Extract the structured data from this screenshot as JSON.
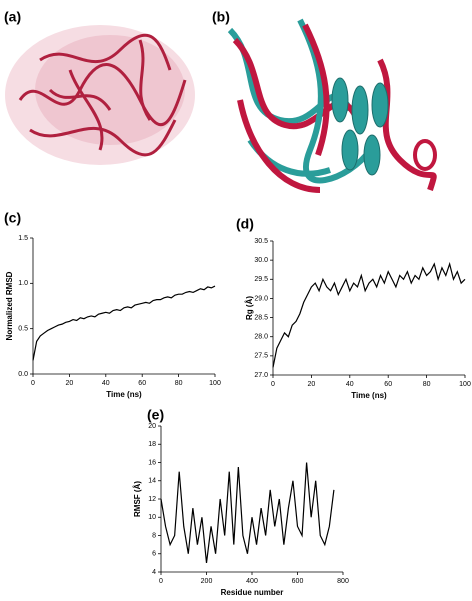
{
  "panel_labels": [
    "(a)",
    "(b)",
    "(c)",
    "(d)",
    "(e)"
  ],
  "chart_data": [
    {
      "type": "line",
      "xlabel": "Time (ns)",
      "ylabel": "Normalized RMSD",
      "color": "#000000",
      "x": [
        0,
        2,
        4,
        6,
        8,
        10,
        12,
        14,
        16,
        18,
        20,
        22,
        24,
        26,
        28,
        30,
        32,
        34,
        36,
        38,
        40,
        42,
        44,
        46,
        48,
        50,
        52,
        54,
        56,
        58,
        60,
        62,
        64,
        66,
        68,
        70,
        72,
        74,
        76,
        78,
        80,
        82,
        84,
        86,
        88,
        90,
        92,
        94,
        96,
        98,
        100
      ],
      "values": [
        0.15,
        0.36,
        0.42,
        0.45,
        0.48,
        0.5,
        0.52,
        0.54,
        0.55,
        0.57,
        0.58,
        0.6,
        0.59,
        0.62,
        0.61,
        0.63,
        0.64,
        0.63,
        0.66,
        0.67,
        0.68,
        0.67,
        0.7,
        0.71,
        0.7,
        0.73,
        0.74,
        0.73,
        0.76,
        0.77,
        0.78,
        0.79,
        0.78,
        0.81,
        0.82,
        0.82,
        0.84,
        0.85,
        0.84,
        0.87,
        0.88,
        0.88,
        0.9,
        0.91,
        0.9,
        0.92,
        0.94,
        0.93,
        0.96,
        0.95,
        0.97
      ],
      "xlim": [
        0,
        100
      ],
      "xticks": [
        0,
        20,
        40,
        60,
        80,
        100
      ],
      "ylim": [
        0,
        1.5
      ],
      "yticks": [
        {
          "value": 0,
          "label": "0.0"
        },
        {
          "value": 0.5,
          "label": "0.5"
        },
        {
          "value": 1,
          "label": "1.0"
        },
        {
          "value": 1.5,
          "label": "1.5"
        }
      ]
    },
    {
      "type": "line",
      "xlabel": "Time (ns)",
      "ylabel": "Rg (Å)",
      "color": "#000000",
      "x": [
        0,
        2,
        4,
        6,
        8,
        10,
        12,
        14,
        16,
        18,
        20,
        22,
        24,
        26,
        28,
        30,
        32,
        34,
        36,
        38,
        40,
        42,
        44,
        46,
        48,
        50,
        52,
        54,
        56,
        58,
        60,
        62,
        64,
        66,
        68,
        70,
        72,
        74,
        76,
        78,
        80,
        82,
        84,
        86,
        88,
        90,
        92,
        94,
        96,
        98,
        100
      ],
      "values": [
        27.2,
        27.7,
        27.9,
        28.1,
        28.0,
        28.3,
        28.4,
        28.6,
        28.9,
        29.1,
        29.3,
        29.4,
        29.2,
        29.5,
        29.3,
        29.2,
        29.4,
        29.1,
        29.3,
        29.5,
        29.2,
        29.4,
        29.3,
        29.6,
        29.2,
        29.4,
        29.5,
        29.3,
        29.6,
        29.4,
        29.7,
        29.5,
        29.3,
        29.6,
        29.5,
        29.7,
        29.4,
        29.6,
        29.5,
        29.8,
        29.6,
        29.7,
        29.9,
        29.5,
        29.8,
        29.6,
        29.9,
        29.5,
        29.7,
        29.4,
        29.5
      ],
      "xlim": [
        0,
        100
      ],
      "xticks": [
        0,
        20,
        40,
        60,
        80,
        100
      ],
      "ylim": [
        27,
        30.5
      ],
      "yticks": [
        {
          "value": 27,
          "label": "27.0"
        },
        27.5,
        {
          "value": 28,
          "label": "28.0"
        },
        28.5,
        {
          "value": 29,
          "label": "29.0"
        },
        29.5,
        {
          "value": 30,
          "label": "30.0"
        },
        30.5
      ]
    },
    {
      "type": "line",
      "xlabel": "Residue number",
      "ylabel": "RMSF (Å)",
      "color": "#000000",
      "x": [
        0,
        20,
        40,
        60,
        80,
        100,
        120,
        140,
        160,
        180,
        200,
        220,
        240,
        260,
        280,
        300,
        320,
        340,
        360,
        380,
        400,
        420,
        440,
        460,
        480,
        500,
        520,
        540,
        560,
        580,
        600,
        620,
        640,
        660,
        680,
        700,
        720,
        740,
        760
      ],
      "values": [
        12,
        9,
        7,
        8,
        15,
        9,
        6,
        11,
        7,
        10,
        5,
        9,
        6,
        12,
        8,
        15,
        7,
        15.5,
        8,
        6,
        10,
        7,
        11,
        8,
        13,
        9,
        12,
        7,
        11,
        14,
        9,
        8,
        16,
        10,
        14,
        8,
        7,
        9,
        13
      ],
      "xlim": [
        0,
        800
      ],
      "xticks": [
        0,
        200,
        400,
        600,
        800
      ],
      "ylim": [
        4,
        20
      ],
      "yticks": [
        4,
        6,
        8,
        10,
        12,
        14,
        16,
        18,
        20
      ]
    }
  ]
}
